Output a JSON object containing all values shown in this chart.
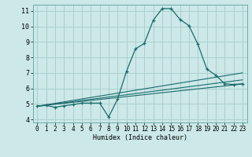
{
  "xlabel": "Humidex (Indice chaleur)",
  "bg_color": "#cce8e8",
  "grid_color": "#aacfcf",
  "line_color": "#1a6b6b",
  "xlim": [
    -0.5,
    23.5
  ],
  "ylim": [
    3.8,
    11.4
  ],
  "yticks": [
    4,
    5,
    6,
    7,
    8,
    9,
    10,
    11
  ],
  "xticks": [
    0,
    1,
    2,
    3,
    4,
    5,
    6,
    7,
    8,
    9,
    10,
    11,
    12,
    13,
    14,
    15,
    16,
    17,
    18,
    19,
    20,
    21,
    22,
    23
  ],
  "line1_x": [
    0,
    1,
    2,
    3,
    4,
    5,
    6,
    7,
    8,
    9,
    10,
    11,
    12,
    13,
    14,
    15,
    16,
    17,
    18,
    19,
    20,
    21,
    22,
    23
  ],
  "line1_y": [
    4.85,
    4.9,
    4.78,
    4.88,
    4.95,
    5.05,
    5.05,
    5.05,
    4.15,
    5.3,
    7.1,
    8.55,
    8.9,
    10.4,
    11.15,
    11.15,
    10.45,
    10.05,
    8.85,
    7.25,
    6.85,
    6.3,
    6.25,
    6.3
  ],
  "line2_x": [
    0,
    23
  ],
  "line2_y": [
    4.85,
    6.28
  ],
  "line3_x": [
    0,
    23
  ],
  "line3_y": [
    4.85,
    6.55
  ],
  "line4_x": [
    0,
    23
  ],
  "line4_y": [
    4.85,
    7.0
  ]
}
